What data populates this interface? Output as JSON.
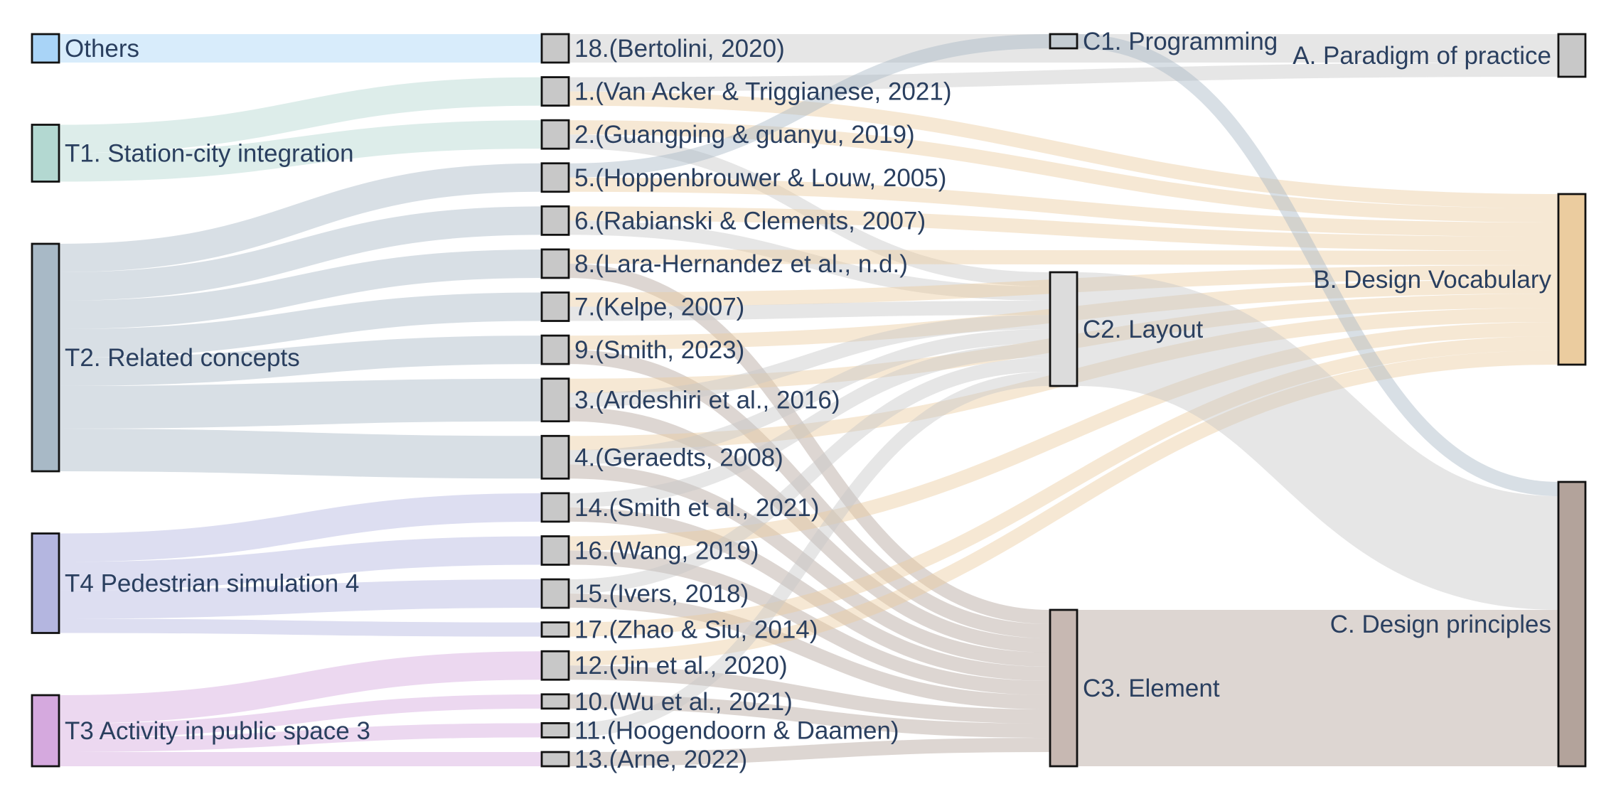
{
  "diagram": {
    "type": "sankey",
    "link_opacity": 0.45,
    "columns": [
      {
        "name": "themes",
        "nodes": [
          {
            "id": "others",
            "label": "Others",
            "color": "#a9d4f7"
          },
          {
            "id": "t1",
            "label": "T1. Station-city integration",
            "color": "#b3d8d1"
          },
          {
            "id": "t2",
            "label": "T2. Related concepts",
            "color": "#a8b9c6"
          },
          {
            "id": "t4",
            "label": "T4 Pedestrian simulation 4",
            "color": "#b4b6e0"
          },
          {
            "id": "t3",
            "label": "T3 Activity in public space 3",
            "color": "#d5a9de"
          }
        ]
      },
      {
        "name": "references",
        "nodes": [
          {
            "id": "r18",
            "label": "18.(Bertolini, 2020)",
            "color": "#c8c8c8"
          },
          {
            "id": "r1",
            "label": "1.(Van Acker & Triggianese, 2021)",
            "color": "#c8c8c8"
          },
          {
            "id": "r2",
            "label": "2.(Guangping & guanyu, 2019)",
            "color": "#c8c8c8"
          },
          {
            "id": "r5",
            "label": "5.(Hoppenbrouwer & Louw, 2005)",
            "color": "#c8c8c8"
          },
          {
            "id": "r6",
            "label": "6.(Rabianski & Clements, 2007)",
            "color": "#c8c8c8"
          },
          {
            "id": "r8",
            "label": "8.(Lara-Hernandez et al., n.d.)",
            "color": "#c8c8c8"
          },
          {
            "id": "r7",
            "label": "7.(Kelpe, 2007)",
            "color": "#c8c8c8"
          },
          {
            "id": "r9",
            "label": "9.(Smith, 2023)",
            "color": "#c8c8c8"
          },
          {
            "id": "r3",
            "label": "3.(Ardeshiri et al., 2016)",
            "color": "#c8c8c8"
          },
          {
            "id": "r4",
            "label": "4.(Geraedts, 2008)",
            "color": "#c8c8c8"
          },
          {
            "id": "r14",
            "label": "14.(Smith et al., 2021)",
            "color": "#c8c8c8"
          },
          {
            "id": "r16",
            "label": "16.(Wang, 2019)",
            "color": "#c8c8c8"
          },
          {
            "id": "r15",
            "label": "15.(Ivers, 2018)",
            "color": "#c8c8c8"
          },
          {
            "id": "r17",
            "label": "17.(Zhao & Siu, 2014)",
            "color": "#c8c8c8"
          },
          {
            "id": "r12",
            "label": "12.(Jin et al., 2020)",
            "color": "#c8c8c8"
          },
          {
            "id": "r10",
            "label": "10.(Wu et al., 2021)",
            "color": "#c8c8c8"
          },
          {
            "id": "r11",
            "label": "11.(Hoogendoorn & Daamen)",
            "color": "#c8c8c8"
          },
          {
            "id": "r13",
            "label": "13.(Arne, 2022)",
            "color": "#c8c8c8"
          }
        ]
      },
      {
        "name": "subcategories",
        "nodes": [
          {
            "id": "c1",
            "label": "C1. Programming",
            "color": "#c4ccd2"
          },
          {
            "id": "c2",
            "label": "C2. Layout",
            "color": "#dcdcdc"
          },
          {
            "id": "c3",
            "label": "C3. Element",
            "color": "#c7b8b2"
          }
        ]
      },
      {
        "name": "categories",
        "nodes": [
          {
            "id": "a",
            "label": "A. Paradigm of practice",
            "color": "#c8c8c8"
          },
          {
            "id": "b",
            "label": "B. Design Vocabulary",
            "color": "#ebcc9f"
          },
          {
            "id": "c",
            "label": "C. Design principles",
            "color": "#b3a39b"
          }
        ]
      }
    ],
    "links": [
      {
        "source": "others",
        "target": "r18",
        "value": 1,
        "color": "#a9d4f7"
      },
      {
        "source": "t1",
        "target": "r1",
        "value": 1,
        "color": "#b3d8d1"
      },
      {
        "source": "t1",
        "target": "r2",
        "value": 1,
        "color": "#b3d8d1"
      },
      {
        "source": "t2",
        "target": "r5",
        "value": 1,
        "color": "#a8b9c6"
      },
      {
        "source": "t2",
        "target": "r6",
        "value": 1,
        "color": "#a8b9c6"
      },
      {
        "source": "t2",
        "target": "r8",
        "value": 1,
        "color": "#a8b9c6"
      },
      {
        "source": "t2",
        "target": "r7",
        "value": 1,
        "color": "#a8b9c6"
      },
      {
        "source": "t2",
        "target": "r9",
        "value": 1,
        "color": "#a8b9c6"
      },
      {
        "source": "t2",
        "target": "r3",
        "value": 1.5,
        "color": "#a8b9c6"
      },
      {
        "source": "t2",
        "target": "r4",
        "value": 1.5,
        "color": "#a8b9c6"
      },
      {
        "source": "t4",
        "target": "r14",
        "value": 1,
        "color": "#b4b6e0"
      },
      {
        "source": "t4",
        "target": "r16",
        "value": 1,
        "color": "#b4b6e0"
      },
      {
        "source": "t4",
        "target": "r15",
        "value": 1,
        "color": "#b4b6e0"
      },
      {
        "source": "t4",
        "target": "r17",
        "value": 0.5,
        "color": "#b4b6e0"
      },
      {
        "source": "t3",
        "target": "r12",
        "value": 1,
        "color": "#d5a9de"
      },
      {
        "source": "t3",
        "target": "r10",
        "value": 0.5,
        "color": "#d5a9de"
      },
      {
        "source": "t3",
        "target": "r11",
        "value": 0.5,
        "color": "#d5a9de"
      },
      {
        "source": "t3",
        "target": "r13",
        "value": 0.5,
        "color": "#d5a9de"
      },
      {
        "source": "r18",
        "target": "a",
        "value": 1,
        "color": "#c8c8c8"
      },
      {
        "source": "r1",
        "target": "a",
        "value": 0.5,
        "color": "#c8c8c8"
      },
      {
        "source": "r1",
        "target": "b",
        "value": 0.5,
        "color": "#ebcc9f"
      },
      {
        "source": "r2",
        "target": "b",
        "value": 0.5,
        "color": "#ebcc9f"
      },
      {
        "source": "r2",
        "target": "c2",
        "value": 0.5,
        "color": "#c8c8c8"
      },
      {
        "source": "r5",
        "target": "b",
        "value": 0.5,
        "color": "#ebcc9f"
      },
      {
        "source": "r5",
        "target": "c1",
        "value": 0.5,
        "color": "#a8b9c6"
      },
      {
        "source": "r6",
        "target": "b",
        "value": 0.5,
        "color": "#ebcc9f"
      },
      {
        "source": "r6",
        "target": "c2",
        "value": 0.5,
        "color": "#c8c8c8"
      },
      {
        "source": "r8",
        "target": "b",
        "value": 0.5,
        "color": "#ebcc9f"
      },
      {
        "source": "r8",
        "target": "c3",
        "value": 0.5,
        "color": "#b3a39b"
      },
      {
        "source": "r7",
        "target": "b",
        "value": 0.5,
        "color": "#ebcc9f"
      },
      {
        "source": "r7",
        "target": "c2",
        "value": 0.5,
        "color": "#c8c8c8"
      },
      {
        "source": "r9",
        "target": "b",
        "value": 0.5,
        "color": "#ebcc9f"
      },
      {
        "source": "r9",
        "target": "c3",
        "value": 0.5,
        "color": "#b3a39b"
      },
      {
        "source": "r3",
        "target": "b",
        "value": 0.5,
        "color": "#ebcc9f"
      },
      {
        "source": "r3",
        "target": "c2",
        "value": 0.5,
        "color": "#c8c8c8"
      },
      {
        "source": "r3",
        "target": "c3",
        "value": 0.5,
        "color": "#b3a39b"
      },
      {
        "source": "r4",
        "target": "b",
        "value": 0.5,
        "color": "#ebcc9f"
      },
      {
        "source": "r4",
        "target": "c2",
        "value": 0.5,
        "color": "#c8c8c8"
      },
      {
        "source": "r4",
        "target": "c3",
        "value": 0.5,
        "color": "#b3a39b"
      },
      {
        "source": "r14",
        "target": "c2",
        "value": 0.5,
        "color": "#c8c8c8"
      },
      {
        "source": "r14",
        "target": "c3",
        "value": 0.5,
        "color": "#b3a39b"
      },
      {
        "source": "r16",
        "target": "b",
        "value": 0.5,
        "color": "#ebcc9f"
      },
      {
        "source": "r16",
        "target": "c3",
        "value": 0.5,
        "color": "#b3a39b"
      },
      {
        "source": "r15",
        "target": "c2",
        "value": 0.5,
        "color": "#c8c8c8"
      },
      {
        "source": "r15",
        "target": "c3",
        "value": 0.5,
        "color": "#b3a39b"
      },
      {
        "source": "r17",
        "target": "b",
        "value": 0.5,
        "color": "#ebcc9f"
      },
      {
        "source": "r12",
        "target": "b",
        "value": 0.5,
        "color": "#ebcc9f"
      },
      {
        "source": "r12",
        "target": "c3",
        "value": 0.5,
        "color": "#b3a39b"
      },
      {
        "source": "r10",
        "target": "c3",
        "value": 0.5,
        "color": "#b3a39b"
      },
      {
        "source": "r11",
        "target": "c2",
        "value": 0.5,
        "color": "#c8c8c8"
      },
      {
        "source": "r13",
        "target": "c3",
        "value": 0.5,
        "color": "#b3a39b"
      },
      {
        "source": "c1",
        "target": "c",
        "value": 0.5,
        "color": "#a8b9c6"
      },
      {
        "source": "c2",
        "target": "c",
        "value": 4,
        "color": "#c8c8c8"
      },
      {
        "source": "c3",
        "target": "c",
        "value": 5.5,
        "color": "#b3a39b"
      }
    ]
  }
}
